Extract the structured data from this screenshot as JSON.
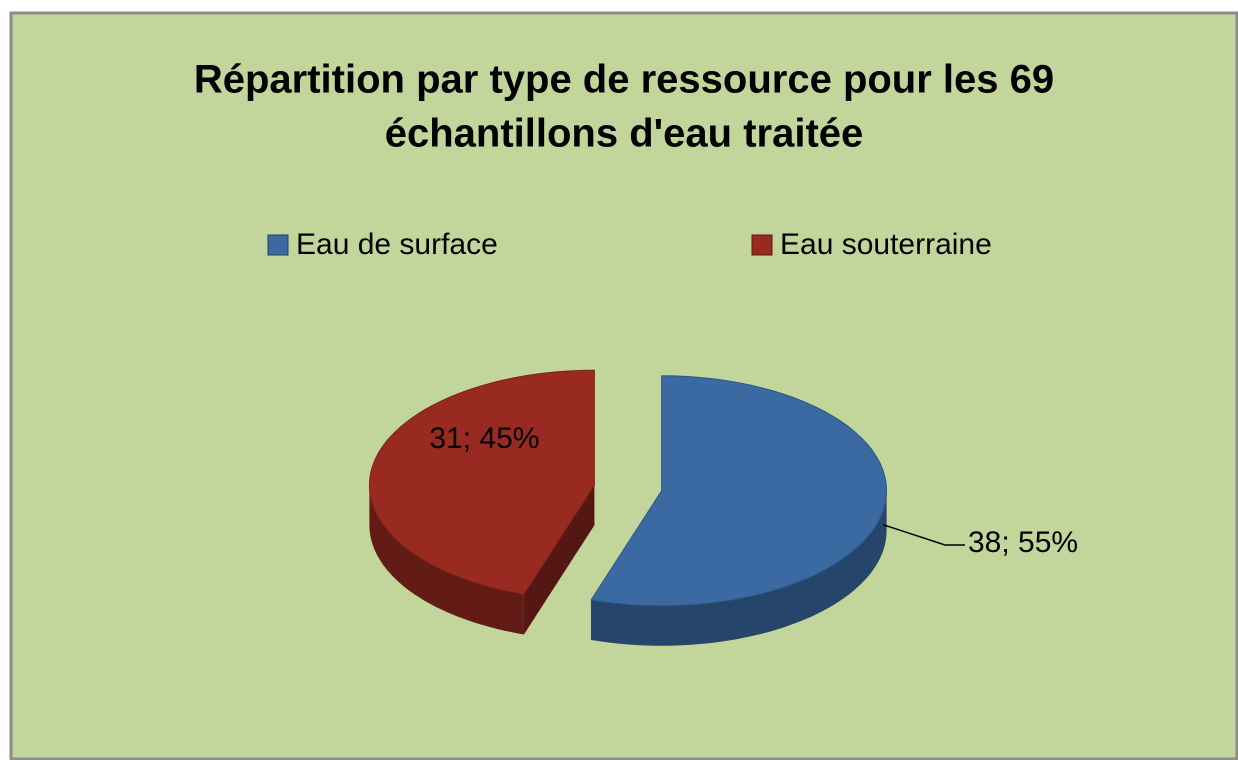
{
  "chart_data": {
    "type": "pie",
    "title": "Répartition par type de ressource pour les 69",
    "title_line2": "échantillons d'eau traitée",
    "categories": [
      "Eau de surface",
      "Eau souterraine"
    ],
    "values": [
      38,
      31
    ],
    "value_labels": [
      "38; 55%",
      "31; 45%"
    ],
    "colors": [
      "#3b6aa3",
      "#982a22"
    ],
    "legend": "top",
    "style": "3d-exploded"
  }
}
